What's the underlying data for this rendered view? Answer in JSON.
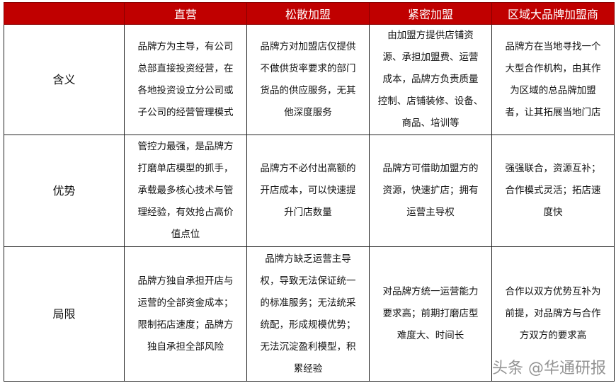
{
  "header": [
    "",
    "直营",
    "松散加盟",
    "紧密加盟",
    "区域大品牌加盟商"
  ],
  "colors": {
    "header_bg": "#c00000",
    "header_text": "#ffffff",
    "border": "#222222"
  },
  "rows": [
    {
      "label": "含义",
      "cells": [
        [
          "品牌方为主导，有公司",
          "总部直接投资经营，在",
          "各地投资设立分公司或",
          "子公司的经营管理模式"
        ],
        [
          "品牌方对加盟店仅提供",
          "不做供货率要求的部门",
          "货品的供应服务，无其",
          "他深度服务"
        ],
        [
          "由加盟方提供店铺资",
          "源、承担加盟费、运营",
          "成本，品牌方负责质量",
          "控制、店铺装修、设备、",
          "商品、培训等"
        ],
        [
          "品牌方在当地寻找一个",
          "大型合作机构，由其作",
          "为区域的总品牌加盟",
          "者，让其拓展当地门店"
        ]
      ]
    },
    {
      "label": "优势",
      "cells": [
        [
          "管控力最强，是品牌方",
          "打磨单店模型的抓手，",
          "承载最多核心技术与管",
          "理经验，有效抢占高价",
          "值点位"
        ],
        [
          "品牌方不必付出高额的",
          "开店成本，可以快速提",
          "升门店数量"
        ],
        [
          "品牌方可借助加盟方的",
          "资源，快速扩店；拥有",
          "运营主导权"
        ],
        [
          "强强联合，资源互补；",
          "合作模式灵活；拓店速",
          "度快"
        ]
      ]
    },
    {
      "label": "局限",
      "cells": [
        [
          "品牌方独自承担开店与",
          "运营的全部资金成本；",
          "限制拓店速度；品牌方",
          "独自承担全部风险"
        ],
        [
          "品牌方缺乏运营主导",
          "权，导致无法保证统一",
          "的标准服务；无法统采",
          "统配，形成规模优势；",
          "无法沉淀盈利模型，积",
          "累经验"
        ],
        [
          "对品牌方统一运营能力",
          "要求高；前期打磨店型",
          "难度大、时间长"
        ],
        [
          "合作以双方优势互补为",
          "前提，对品牌方与合作",
          "方双方的要求高"
        ]
      ]
    }
  ],
  "watermark": "头条 @华通研报"
}
